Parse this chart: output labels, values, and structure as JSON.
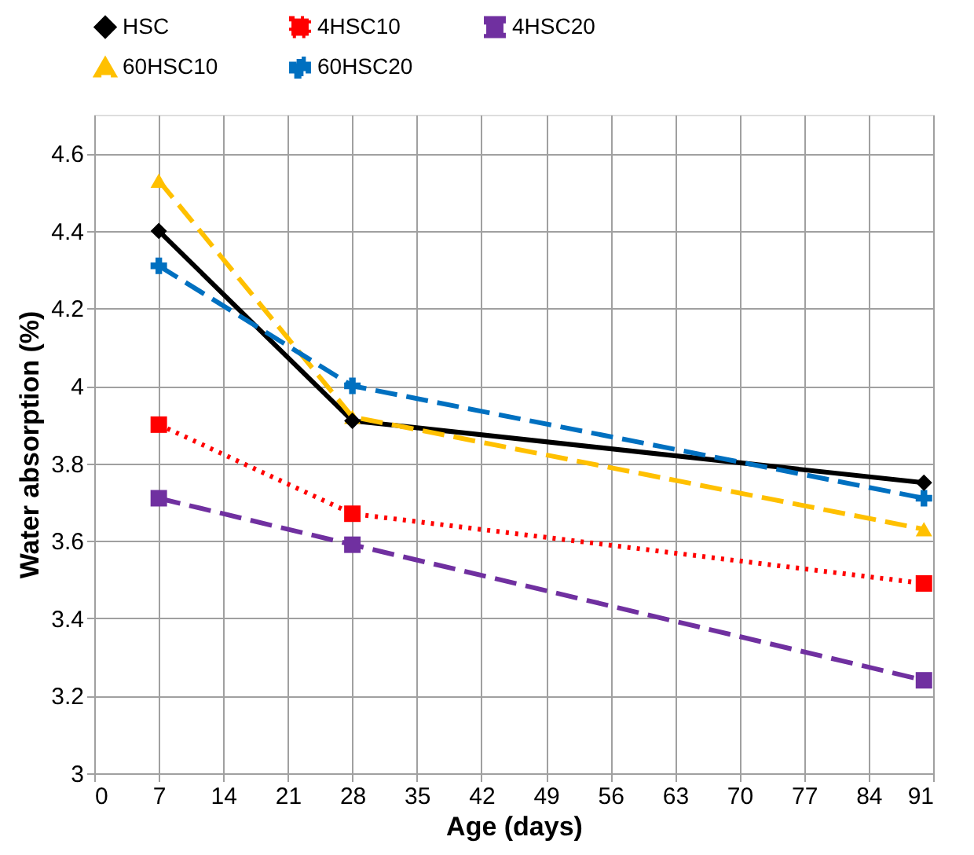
{
  "chart_data": {
    "type": "line",
    "xlabel": "Age (days)",
    "ylabel": "Water absorption (%)",
    "x": [
      7,
      28,
      90
    ],
    "xlim": [
      0,
      91
    ],
    "xticks": [
      0,
      7,
      14,
      21,
      28,
      35,
      42,
      49,
      56,
      63,
      70,
      77,
      84,
      91
    ],
    "ylim": [
      3,
      4.7
    ],
    "yticks": [
      3,
      3.2,
      3.4,
      3.6,
      3.8,
      4,
      4.2,
      4.4,
      4.6
    ],
    "grid": true,
    "legend": "top",
    "series": [
      {
        "name": "HSC",
        "color": "#000000",
        "values": [
          4.4,
          3.91,
          3.75
        ],
        "marker": "diamond",
        "line_style": "solid"
      },
      {
        "name": "4HSC10",
        "color": "#ff0000",
        "values": [
          3.9,
          3.67,
          3.49
        ],
        "marker": "square",
        "line_style": "dotted"
      },
      {
        "name": "4HSC20",
        "color": "#7030a0",
        "values": [
          3.71,
          3.59,
          3.24
        ],
        "marker": "square",
        "line_style": "dashed"
      },
      {
        "name": "60HSC10",
        "color": "#ffc000",
        "values": [
          4.53,
          3.92,
          3.63
        ],
        "marker": "triangle",
        "line_style": "dashed"
      },
      {
        "name": "60HSC20",
        "color": "#0070c0",
        "values": [
          4.31,
          4.0,
          3.71
        ],
        "marker": "cross",
        "line_style": "dashed"
      }
    ]
  }
}
